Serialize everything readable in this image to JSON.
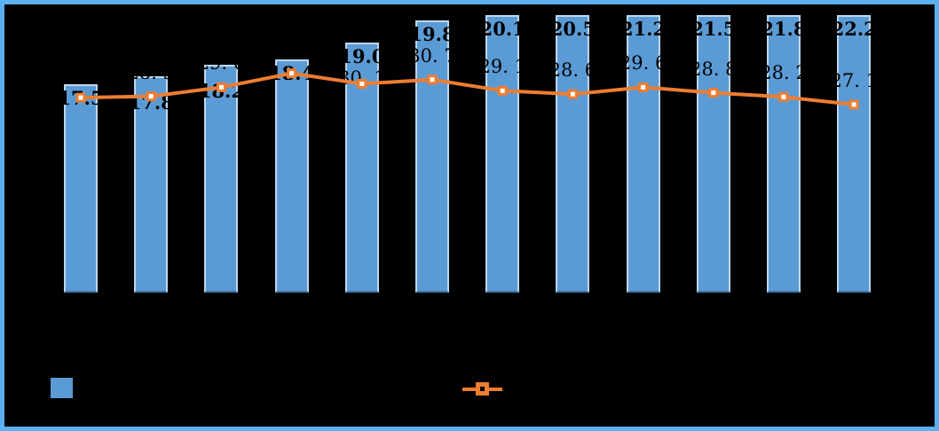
{
  "frame": {
    "background_color": "#000000",
    "border_color": "#5BB0F0"
  },
  "chart_data": {
    "type": "bar",
    "subtype": "combo-bar-line",
    "title": "",
    "xlabel": "",
    "ylabel": "",
    "grid": "off",
    "legend_position": "bottom",
    "categories": [
      "",
      "",
      "",
      "",
      "",
      "",
      "",
      "",
      "",
      "",
      "",
      ""
    ],
    "series": [
      {
        "name": "bar-series",
        "type": "bar",
        "color": "#5B9BD5",
        "edge_color": "#BDD7EE",
        "bottom_edge_color": "#41719C",
        "axis": {
          "min": 10,
          "max": 20,
          "bars_clipped_at_max": true
        },
        "values": [
          17.5,
          17.8,
          18.2,
          18.4,
          19.0,
          19.8,
          20.1,
          20.5,
          21.2,
          21.5,
          21.8,
          22.2
        ],
        "labels": [
          "17.5",
          "17.8",
          "18.2",
          "18.4",
          "19.0",
          "19.8",
          "20.1",
          "20.5",
          "21.2",
          "21.5",
          "21.8",
          "22.2"
        ]
      },
      {
        "name": "line-series",
        "type": "line",
        "color": "#ED7D31",
        "marker": "square-with-white-center",
        "marker_center_color": "#FFFFFF",
        "axis": {
          "min": 0,
          "max": 40
        },
        "values": [
          28.1,
          28.3,
          29.6,
          31.6,
          30.1,
          30.7,
          29.1,
          28.6,
          29.6,
          28.8,
          28.2,
          27.1
        ],
        "labels": [
          "",
          "28. 3",
          "29. 6",
          "",
          "30. 1",
          "30. 7",
          "29. 1",
          "28. 6",
          "29. 6",
          "28. 8",
          "28. 2",
          "27. 1"
        ]
      }
    ]
  },
  "legend": {
    "items": [
      {
        "name": "bar-series",
        "swatch_color": "#5B9BD5",
        "label": ""
      },
      {
        "name": "line-series",
        "swatch_color": "#ED7D31",
        "label": ""
      }
    ]
  }
}
